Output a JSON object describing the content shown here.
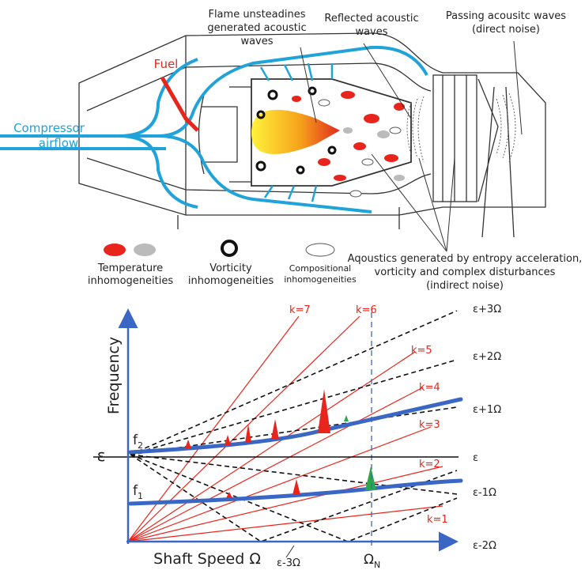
{
  "combustor": {
    "flame_note": [
      "Flame unsteadines",
      "generated acoustic",
      "waves"
    ],
    "reflected_note": [
      "Reflected acoustic",
      "waves"
    ],
    "passing_note": [
      "Passing acousitc waves",
      "(direct noise)"
    ],
    "fuel": "Fuel",
    "compressor": [
      "Compressor",
      "airflow"
    ],
    "indirect_note": [
      "Aqoustics generated by entropy acceleration,",
      "vorticity and complex disturbances",
      "(indirect noise)"
    ],
    "legend": [
      [
        "Temperature",
        "inhomogeneities"
      ],
      [
        "Vorticity",
        "inhomogeneities"
      ],
      [
        "Compositional",
        "inhomogeneities"
      ]
    ]
  },
  "campbell": {
    "y_axis_label": "Frequency",
    "x_axis_label": "Shaft Speed Ω",
    "epsilon": "ε",
    "f2": {
      "base": "f",
      "sub": "2"
    },
    "f1": {
      "base": "f",
      "sub": "1"
    },
    "omega_n": {
      "base": "Ω",
      "sub": "N"
    },
    "orders": [
      "k=7",
      "k=6",
      "k=5",
      "k=4",
      "k=3",
      "k=2",
      "k=1"
    ],
    "lines": [
      "ε+3Ω",
      "ε+2Ω",
      "ε+1Ω",
      "ε",
      "ε-1Ω",
      "ε-2Ω",
      "ε-3Ω"
    ]
  }
}
